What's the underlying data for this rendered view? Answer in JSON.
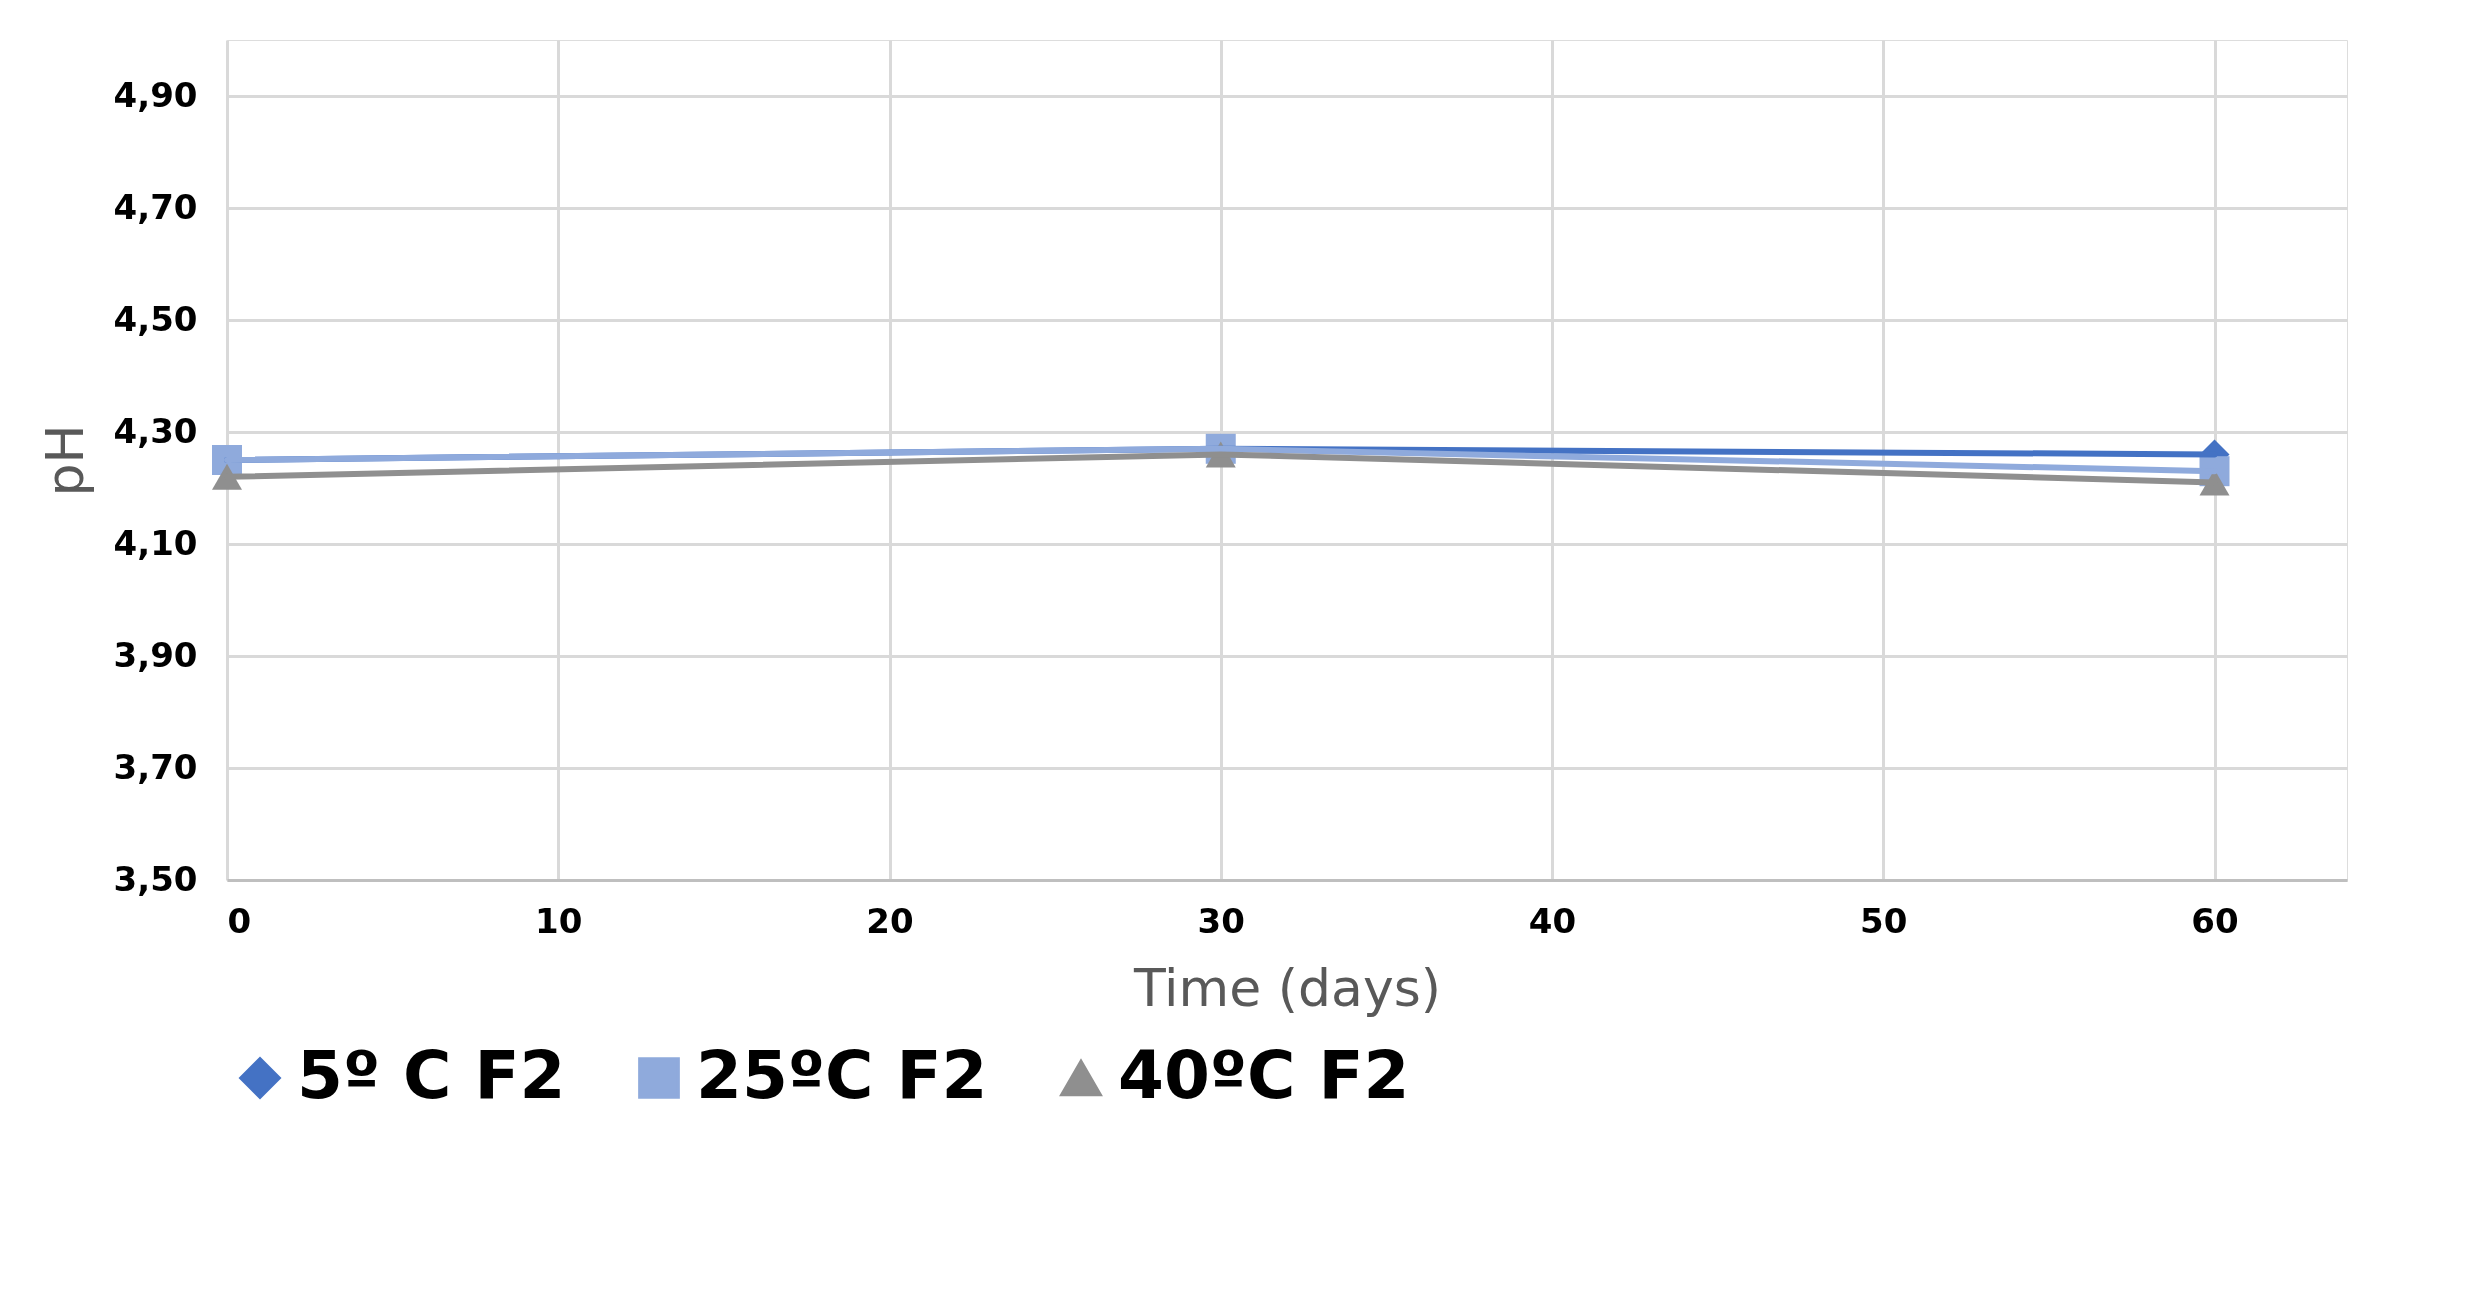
{
  "chart_data": {
    "type": "line",
    "xlabel": "Time (days)",
    "ylabel": "pH",
    "x": [
      0,
      30,
      60
    ],
    "series": [
      {
        "name": "5º C F2",
        "color": "#4472c4",
        "marker": "diamond",
        "values": [
          4.25,
          4.27,
          4.26
        ]
      },
      {
        "name": "25ºC F2",
        "color": "#8faadc",
        "marker": "square",
        "values": [
          4.25,
          4.27,
          4.23
        ]
      },
      {
        "name": "40ºC F2",
        "color": "#8f8f8f",
        "marker": "triangle",
        "values": [
          4.22,
          4.26,
          4.21
        ]
      }
    ],
    "xlim": [
      0,
      64
    ],
    "xticks": [
      0,
      10,
      20,
      30,
      40,
      50,
      60
    ],
    "ylim": [
      3.5,
      5.0
    ],
    "yticks": [
      {
        "value": 3.5,
        "label": "3,50"
      },
      {
        "value": 3.7,
        "label": "3,70"
      },
      {
        "value": 3.9,
        "label": "3,90"
      },
      {
        "value": 4.1,
        "label": "4,10"
      },
      {
        "value": 4.3,
        "label": "4,30"
      },
      {
        "value": 4.5,
        "label": "4,50"
      },
      {
        "value": 4.7,
        "label": "4,70"
      },
      {
        "value": 4.9,
        "label": "4,90"
      }
    ],
    "grid": true,
    "legend": "bottom",
    "line_style": "solid"
  }
}
